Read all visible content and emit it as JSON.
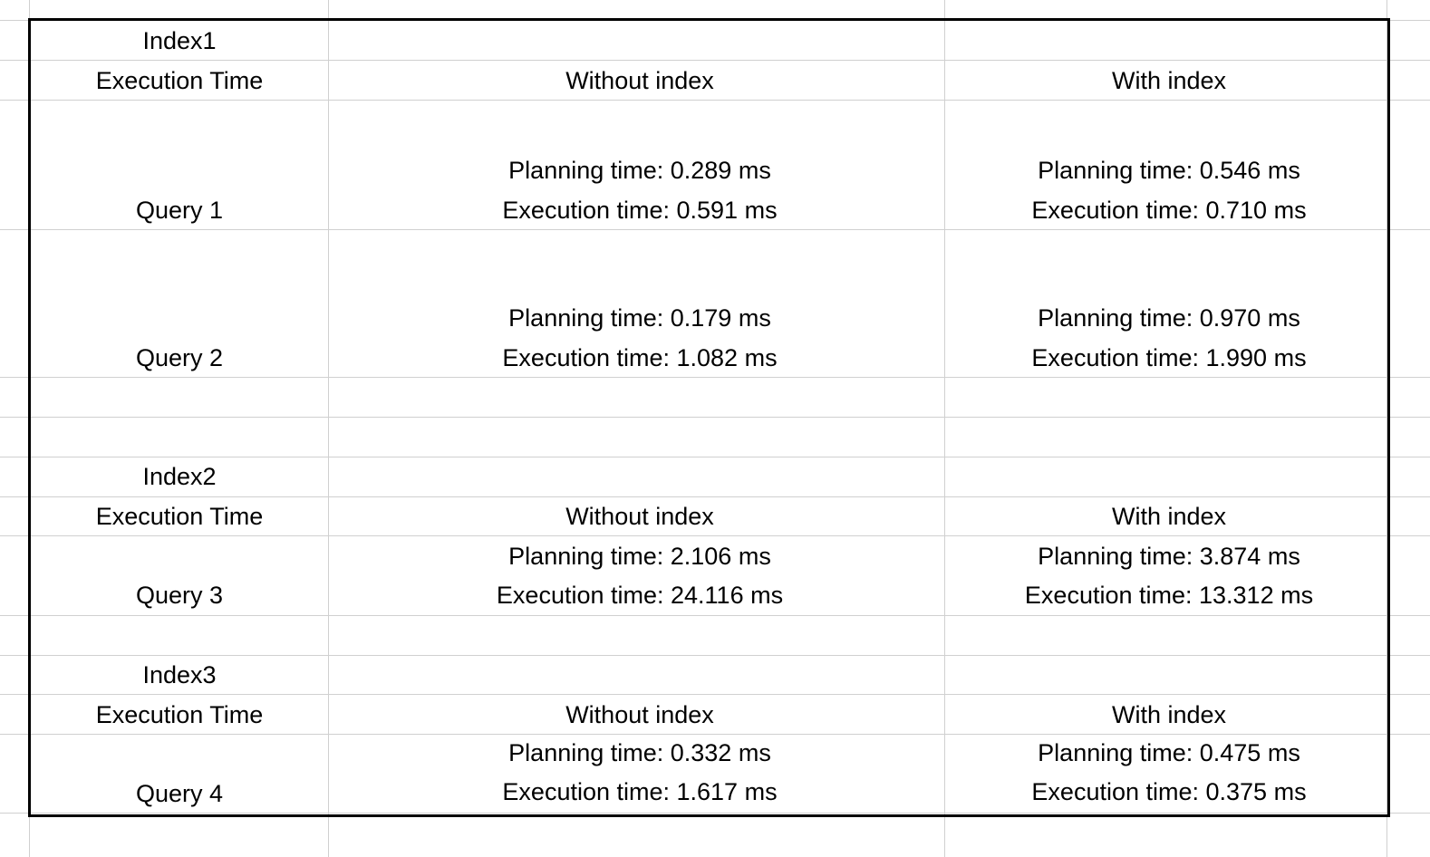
{
  "sheet": {
    "sections": [
      {
        "index_label": "Index1",
        "header": {
          "label": "Execution Time",
          "without": "Without index",
          "with": "With index"
        },
        "queries": [
          {
            "name": "Query 1",
            "without_planning": "Planning time: 0.289 ms",
            "without_execution": "Execution time: 0.591 ms",
            "with_planning": "Planning time: 0.546 ms",
            "with_execution": "Execution time: 0.710 ms"
          },
          {
            "name": "Query 2",
            "without_planning": "Planning time: 0.179 ms",
            "without_execution": "Execution time: 1.082 ms",
            "with_planning": "Planning time: 0.970 ms",
            "with_execution": "Execution time: 1.990 ms"
          }
        ]
      },
      {
        "index_label": "Index2",
        "header": {
          "label": "Execution Time",
          "without": "Without index",
          "with": "With index"
        },
        "queries": [
          {
            "name": "Query 3",
            "without_planning": "Planning time: 2.106 ms",
            "without_execution": "Execution time: 24.116 ms",
            "with_planning": "Planning time: 3.874 ms",
            "with_execution": "Execution time: 13.312 ms"
          }
        ]
      },
      {
        "index_label": "Index3",
        "header": {
          "label": "Execution Time",
          "without": "Without index",
          "with": "With index"
        },
        "queries": [
          {
            "name": "Query 4",
            "without_planning": "Planning time: 0.332 ms",
            "without_execution": "Execution time: 1.617 ms",
            "with_planning": "Planning time: 0.475 ms",
            "with_execution": "Execution time: 0.375 ms"
          }
        ]
      }
    ],
    "colors": {
      "gridline": "#d0d0d0",
      "border": "#000000",
      "text": "#000000",
      "background": "#ffffff"
    }
  }
}
